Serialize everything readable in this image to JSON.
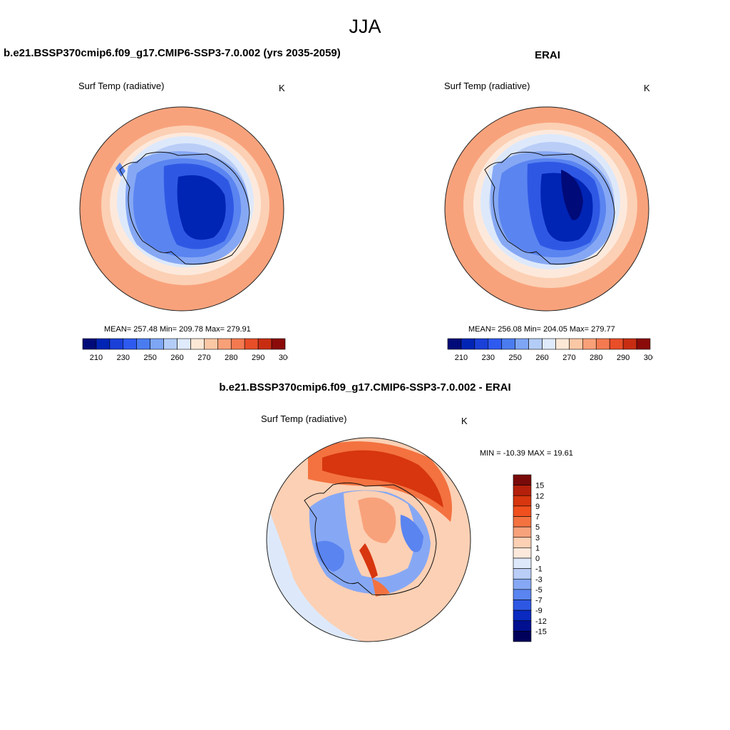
{
  "figure": {
    "title": "JJA"
  },
  "panels": {
    "model": {
      "title": "b.e21.BSSP370cmip6.f09_g17.CMIP6-SSP3-7.0.002 (yrs 2035-2059)",
      "variable": "Surf Temp (radiative)",
      "units": "K",
      "stats": "MEAN= 257.48  Min= 209.78  Max= 279.91",
      "mean": 257.48,
      "min": 209.78,
      "max": 279.91
    },
    "obs": {
      "title": "ERAI",
      "variable": "Surf Temp (radiative)",
      "units": "K",
      "stats": "MEAN= 256.08  Min= 204.05  Max= 279.77",
      "mean": 256.08,
      "min": 204.05,
      "max": 279.77
    },
    "diff": {
      "title": "b.e21.BSSP370cmip6.f09_g17.CMIP6-SSP3-7.0.002 - ERAI",
      "variable": "Surf Temp (radiative)",
      "units": "K",
      "stats": "MIN = -10.39 MAX =  19.61",
      "min": -10.39,
      "max": 19.61
    }
  },
  "colorbars": {
    "absolute": {
      "orientation": "horizontal",
      "tick_labels": [
        "210",
        "230",
        "250",
        "260",
        "270",
        "280",
        "290",
        "300"
      ],
      "colors": [
        "#000a78",
        "#0024b4",
        "#1a40d8",
        "#2e5af0",
        "#4a7cf0",
        "#7ea6f5",
        "#b4cdf8",
        "#dfeafb",
        "#fde8d6",
        "#fbc8a6",
        "#f8a078",
        "#f37a50",
        "#e84e28",
        "#c82d12",
        "#8b0a0a"
      ]
    },
    "difference": {
      "orientation": "vertical",
      "tick_labels": [
        "15",
        "12",
        "9",
        "7",
        "5",
        "3",
        "1",
        "0",
        "-1",
        "-3",
        "-5",
        "-7",
        "-9",
        "-12",
        "-15"
      ],
      "colors": [
        "#7a0a0a",
        "#b4200c",
        "#d7360f",
        "#f0501e",
        "#f37240",
        "#f8a27c",
        "#fcd0b4",
        "#fde9dc",
        "#dde9fb",
        "#b9cdf7",
        "#86a8f4",
        "#5a84f0",
        "#2e58e4",
        "#0a2ac0",
        "#001090",
        "#00005a"
      ]
    }
  },
  "map_colors": {
    "warm_outer": "#f8a27c",
    "warm_mid": "#fcd0b4",
    "neutral": "#fde9dc",
    "cool_light": "#dde9fb",
    "cool_mid": "#86a8f4",
    "cool_strong": "#2e58e4",
    "cool_deep": "#0024b4",
    "cool_core": "#000a78",
    "diff_warm": "#f37240",
    "diff_hot": "#d7360f"
  }
}
